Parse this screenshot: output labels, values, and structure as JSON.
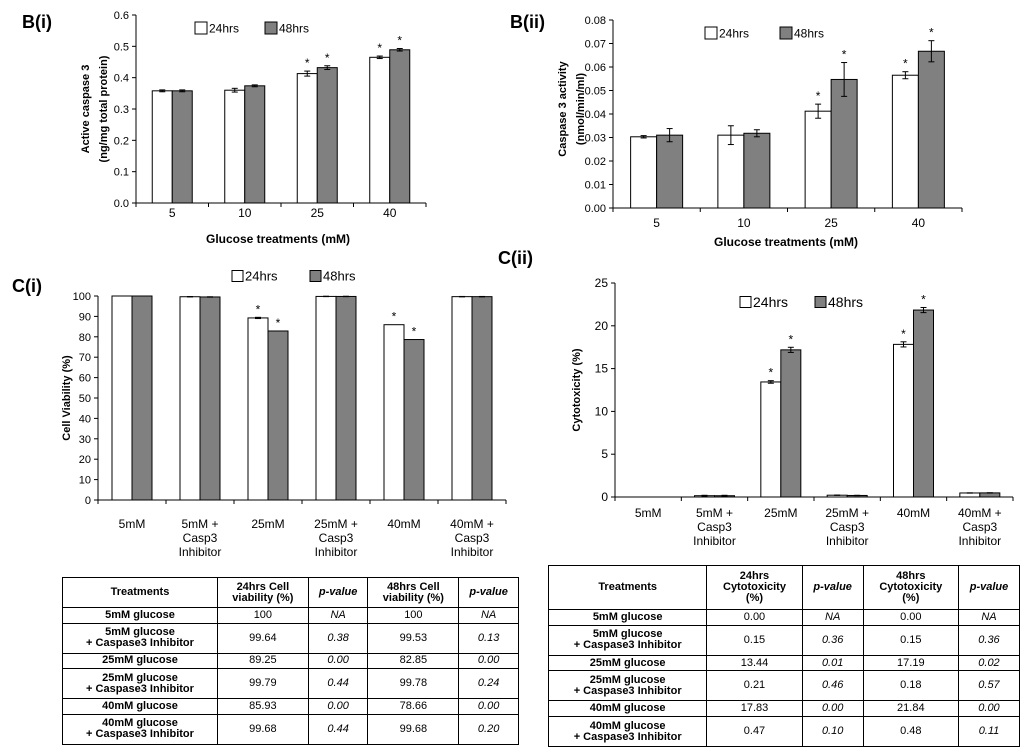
{
  "panels": {
    "bi": "B(i)",
    "bii": "B(ii)",
    "ci": "C(i)",
    "cii": "C(ii)"
  },
  "colors": {
    "s24": "#ffffff",
    "s48": "#808080",
    "stroke": "#000000"
  },
  "chart_data": [
    {
      "id": "bi",
      "type": "bar",
      "categories": [
        "5",
        "10",
        "25",
        "40"
      ],
      "series": [
        {
          "name": "24hrs",
          "values": [
            0.358,
            0.36,
            0.413,
            0.465
          ],
          "errors": [
            0.003,
            0.006,
            0.008,
            0.004
          ]
        },
        {
          "name": "48hrs",
          "values": [
            0.358,
            0.374,
            0.432,
            0.489
          ],
          "errors": [
            0.003,
            0.003,
            0.006,
            0.004
          ]
        }
      ],
      "significance": [
        [
          false,
          false,
          true,
          true
        ],
        [
          false,
          false,
          true,
          true
        ]
      ],
      "xlabel": "Glucose treatments (mM)",
      "ylabel": [
        "Active caspase 3",
        "(ng/mg total protein)"
      ],
      "ylim": [
        0,
        0.6
      ],
      "yticks": [
        "0.0",
        "0.1",
        "0.2",
        "0.3",
        "0.4",
        "0.5",
        "0.6"
      ],
      "legend": "top"
    },
    {
      "id": "bii",
      "type": "bar",
      "categories": [
        "5",
        "10",
        "25",
        "40"
      ],
      "series": [
        {
          "name": "24hrs",
          "values": [
            0.0303,
            0.031,
            0.0412,
            0.0565
          ],
          "errors": [
            0.0005,
            0.004,
            0.003,
            0.0015
          ]
        },
        {
          "name": "48hrs",
          "values": [
            0.031,
            0.0318,
            0.0547,
            0.0667
          ],
          "errors": [
            0.0028,
            0.0015,
            0.0072,
            0.0045
          ]
        }
      ],
      "significance": [
        [
          false,
          false,
          true,
          true
        ],
        [
          false,
          false,
          true,
          true
        ]
      ],
      "xlabel": "Glucose treatments (mM)",
      "ylabel": [
        "Caspase 3 activity",
        "(nmol/min/ml)"
      ],
      "ylim": [
        0,
        0.08
      ],
      "yticks": [
        "0.00",
        "0.01",
        "0.02",
        "0.03",
        "0.04",
        "0.05",
        "0.06",
        "0.07",
        "0.08"
      ],
      "legend": "top"
    },
    {
      "id": "ci",
      "type": "bar",
      "categories": [
        [
          "5mM"
        ],
        [
          "5mM +",
          "Casp3",
          "Inhibitor"
        ],
        [
          "25mM"
        ],
        [
          "25mM +",
          "Casp3",
          "Inhibitor"
        ],
        [
          "40mM"
        ],
        [
          "40mM +",
          "Casp3",
          "Inhibitor"
        ]
      ],
      "series": [
        {
          "name": "24hrs",
          "values": [
            100,
            99.64,
            89.25,
            99.79,
            85.93,
            99.68
          ],
          "errors": [
            0,
            0.1,
            0.3,
            0.1,
            0,
            0.1
          ]
        },
        {
          "name": "48hrs",
          "values": [
            100,
            99.53,
            82.85,
            99.78,
            78.66,
            99.68
          ],
          "errors": [
            0,
            0.1,
            0,
            0.1,
            0,
            0.1
          ]
        }
      ],
      "significance": [
        [
          false,
          false,
          true,
          false,
          true,
          false
        ],
        [
          false,
          false,
          true,
          false,
          true,
          false
        ]
      ],
      "xlabel": "",
      "ylabel": [
        "Cell Viability (%)"
      ],
      "ylim": [
        0,
        100
      ],
      "yticks": [
        "0",
        "10",
        "20",
        "30",
        "40",
        "50",
        "60",
        "70",
        "80",
        "90",
        "100"
      ],
      "legend": "top"
    },
    {
      "id": "cii",
      "type": "bar",
      "categories": [
        [
          "5mM"
        ],
        [
          "5mM +",
          "Casp3",
          "Inhibitor"
        ],
        [
          "25mM"
        ],
        [
          "25mM +",
          "Casp3",
          "Inhibitor"
        ],
        [
          "40mM"
        ],
        [
          "40mM +",
          "Casp3",
          "Inhibitor"
        ]
      ],
      "series": [
        {
          "name": "24hrs",
          "values": [
            0.0,
            0.15,
            13.44,
            0.21,
            17.83,
            0.47
          ],
          "errors": [
            0,
            0.05,
            0.15,
            0.02,
            0.3,
            0.02
          ]
        },
        {
          "name": "48hrs",
          "values": [
            0.0,
            0.15,
            17.19,
            0.18,
            21.84,
            0.48
          ],
          "errors": [
            0,
            0.05,
            0.3,
            0.02,
            0.3,
            0.02
          ]
        }
      ],
      "significance": [
        [
          false,
          false,
          true,
          false,
          true,
          false
        ],
        [
          false,
          false,
          true,
          false,
          true,
          false
        ]
      ],
      "xlabel": "",
      "ylabel": [
        "Cytotoxicity (%)"
      ],
      "ylim": [
        0,
        25
      ],
      "yticks": [
        "0",
        "5",
        "10",
        "15",
        "20",
        "25"
      ],
      "legend": "top"
    },
    {
      "id": "table_viability",
      "type": "table",
      "columns": [
        [
          "Treatments"
        ],
        [
          "24hrs Cell",
          "viability (%)"
        ],
        [
          "p-value"
        ],
        [
          "48hrs Cell",
          "viability (%)"
        ],
        [
          "p-value"
        ]
      ],
      "rows": [
        [
          [
            "5mM glucose"
          ],
          "100",
          "NA",
          "100",
          "NA"
        ],
        [
          [
            "5mM glucose",
            "+ Caspase3 Inhibitor"
          ],
          "99.64",
          "0.38",
          "99.53",
          "0.13"
        ],
        [
          [
            "25mM glucose"
          ],
          "89.25",
          "0.00",
          "82.85",
          "0.00"
        ],
        [
          [
            "25mM glucose",
            "+ Caspase3 Inhibitor"
          ],
          "99.79",
          "0.44",
          "99.78",
          "0.24"
        ],
        [
          [
            "40mM glucose"
          ],
          "85.93",
          "0.00",
          "78.66",
          "0.00"
        ],
        [
          [
            "40mM glucose",
            "+ Caspase3 Inhibitor"
          ],
          "99.68",
          "0.44",
          "99.68",
          "0.20"
        ]
      ]
    },
    {
      "id": "table_cytotoxicity",
      "type": "table",
      "columns": [
        [
          "Treatments"
        ],
        [
          "24hrs",
          "Cytotoxicity",
          "(%)"
        ],
        [
          "p-value"
        ],
        [
          "48hrs",
          "Cytotoxicity",
          "(%)"
        ],
        [
          "p-value"
        ]
      ],
      "rows": [
        [
          [
            "5mM glucose"
          ],
          "0.00",
          "NA",
          "0.00",
          "NA"
        ],
        [
          [
            "5mM glucose",
            "+ Caspase3 Inhibitor"
          ],
          "0.15",
          "0.36",
          "0.15",
          "0.36"
        ],
        [
          [
            "25mM glucose"
          ],
          "13.44",
          "0.01",
          "17.19",
          "0.02"
        ],
        [
          [
            "25mM glucose",
            "+ Caspase3 Inhibitor"
          ],
          "0.21",
          "0.46",
          "0.18",
          "0.57"
        ],
        [
          [
            "40mM glucose"
          ],
          "17.83",
          "0.00",
          "21.84",
          "0.00"
        ],
        [
          [
            "40mM glucose",
            "+ Caspase3 Inhibitor"
          ],
          "0.47",
          "0.10",
          "0.48",
          "0.11"
        ]
      ]
    }
  ]
}
